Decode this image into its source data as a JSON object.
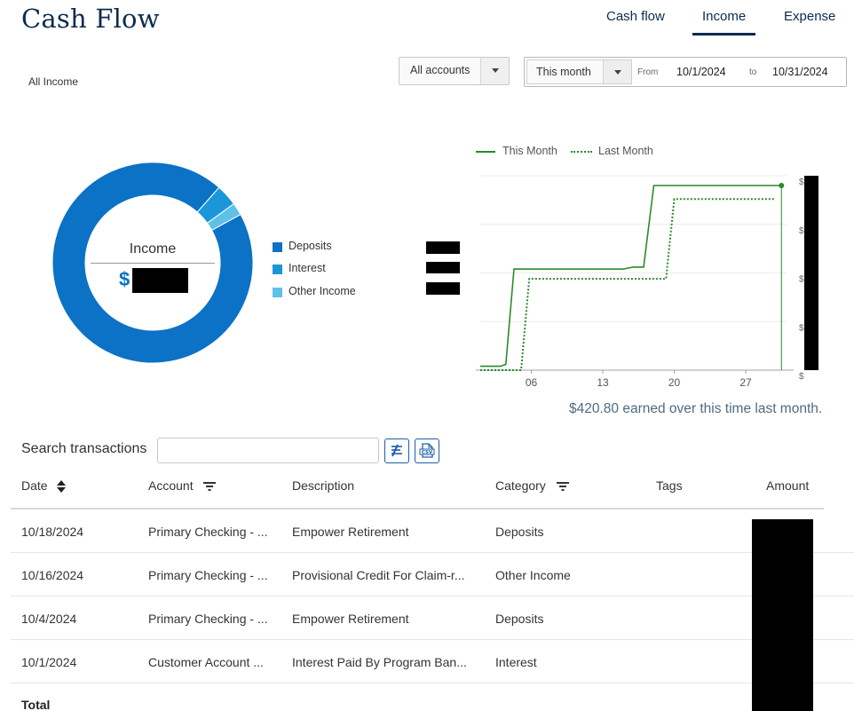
{
  "header": {
    "title": "Cash Flow",
    "tabs": [
      {
        "label": "Cash flow",
        "active": false
      },
      {
        "label": "Income",
        "active": true
      },
      {
        "label": "Expense",
        "active": false
      }
    ]
  },
  "filters": {
    "label": "All Income",
    "accounts_select": "All accounts",
    "period_select": "This month",
    "from_label": "From",
    "from_date": "10/1/2024",
    "to_label": "to",
    "to_date": "10/31/2024"
  },
  "donut": {
    "center_label": "Income",
    "currency_symbol": "$",
    "legend": [
      {
        "label": "Deposits",
        "color": "#0b72c6"
      },
      {
        "label": "Interest",
        "color": "#1a97db"
      },
      {
        "label": "Other Income",
        "color": "#5fc1e6"
      }
    ],
    "slices": [
      {
        "label": "Deposits",
        "fraction": 0.945
      },
      {
        "label": "Interest",
        "fraction": 0.035
      },
      {
        "label": "Other Income",
        "fraction": 0.02
      }
    ]
  },
  "chart_data": {
    "type": "line",
    "x_ticks": [
      "06",
      "13",
      "20",
      "27"
    ],
    "xlim": [
      1,
      31
    ],
    "ylim": [
      0,
      1
    ],
    "y_tick_prefix": "$",
    "series": [
      {
        "name": "This Month",
        "style": "solid",
        "color": "#2a8a2a",
        "points": [
          [
            1,
            0.02
          ],
          [
            3,
            0.02
          ],
          [
            3.5,
            0.03
          ],
          [
            4.3,
            0.52
          ],
          [
            15,
            0.52
          ],
          [
            16,
            0.53
          ],
          [
            17,
            0.53
          ],
          [
            18,
            0.95
          ],
          [
            30.5,
            0.95
          ]
        ]
      },
      {
        "name": "Last Month",
        "style": "dotted",
        "color": "#2a8a2a",
        "points": [
          [
            1,
            0.0
          ],
          [
            5,
            0.0
          ],
          [
            5.8,
            0.47
          ],
          [
            19.2,
            0.47
          ],
          [
            20,
            0.88
          ],
          [
            29.8,
            0.88
          ]
        ]
      }
    ]
  },
  "earned_note": "$420.80 earned over this time last month.",
  "search": {
    "label": "Search transactions",
    "value": "",
    "placeholder": ""
  },
  "table": {
    "columns": [
      "Date",
      "Account",
      "Description",
      "Category",
      "Tags",
      "Amount"
    ],
    "rows": [
      {
        "date": "10/18/2024",
        "account": "Primary Checking - ...",
        "description": "Empower Retirement",
        "category": "Deposits",
        "tags": ""
      },
      {
        "date": "10/16/2024",
        "account": "Primary Checking - ...",
        "description": "Provisional Credit For Claim-r...",
        "category": "Other Income",
        "tags": ""
      },
      {
        "date": "10/4/2024",
        "account": "Primary Checking - ...",
        "description": "Empower Retirement",
        "category": "Deposits",
        "tags": ""
      },
      {
        "date": "10/1/2024",
        "account": "Customer Account ...",
        "description": "Interest Paid By Program Ban...",
        "category": "Interest",
        "tags": ""
      }
    ],
    "total_label": "Total"
  }
}
